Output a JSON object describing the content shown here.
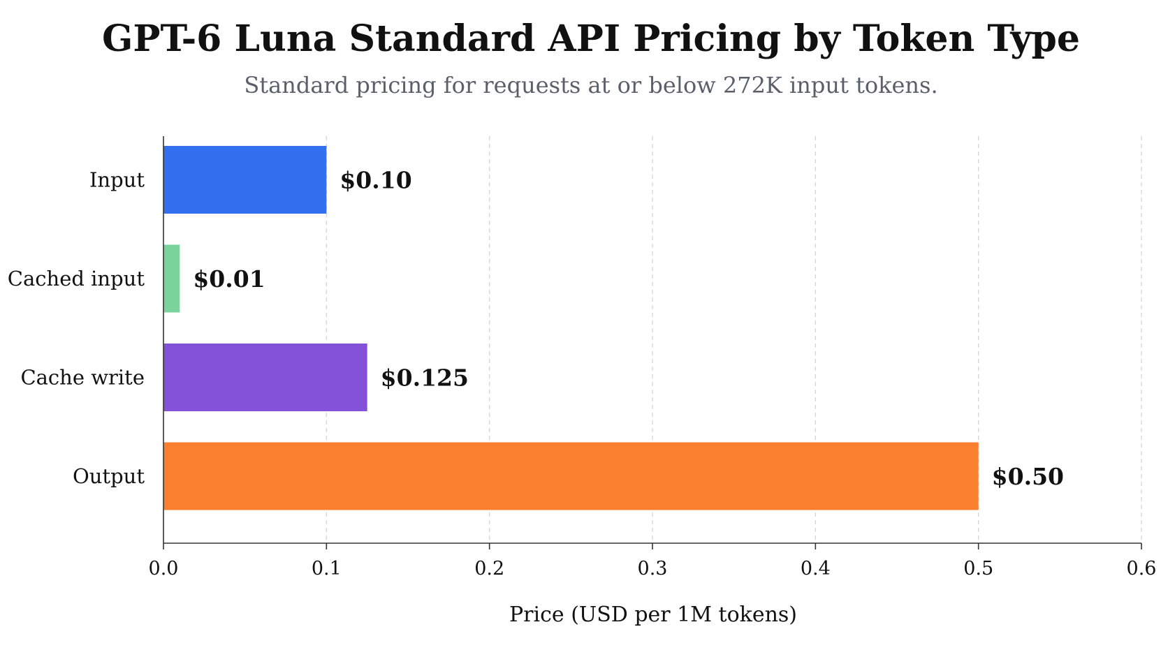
{
  "chart_data": {
    "type": "bar",
    "orientation": "horizontal",
    "title": "GPT-6 Luna Standard API Pricing by Token Type",
    "subtitle": "Standard pricing for requests at or below 272K input tokens.",
    "xlabel": "Price (USD per 1M tokens)",
    "ylabel": "",
    "xlim": [
      0,
      0.6
    ],
    "xticks": [
      {
        "value": 0.0,
        "label": "0.0"
      },
      {
        "value": 0.1,
        "label": "0.1"
      },
      {
        "value": 0.2,
        "label": "0.2"
      },
      {
        "value": 0.3,
        "label": "0.3"
      },
      {
        "value": 0.4,
        "label": "0.4"
      },
      {
        "value": 0.5,
        "label": "0.5"
      },
      {
        "value": 0.6,
        "label": "0.6"
      }
    ],
    "grid": "vertical-dashed",
    "categories": [
      "Input",
      "Cached input",
      "Cache write",
      "Output"
    ],
    "values": [
      0.1,
      0.01,
      0.125,
      0.5
    ],
    "value_labels": [
      "$0.10",
      "$0.01",
      "$0.125",
      "$0.50"
    ],
    "colors": [
      "#3370f0",
      "#7ad39a",
      "#8352d8",
      "#fa7f2e"
    ]
  }
}
